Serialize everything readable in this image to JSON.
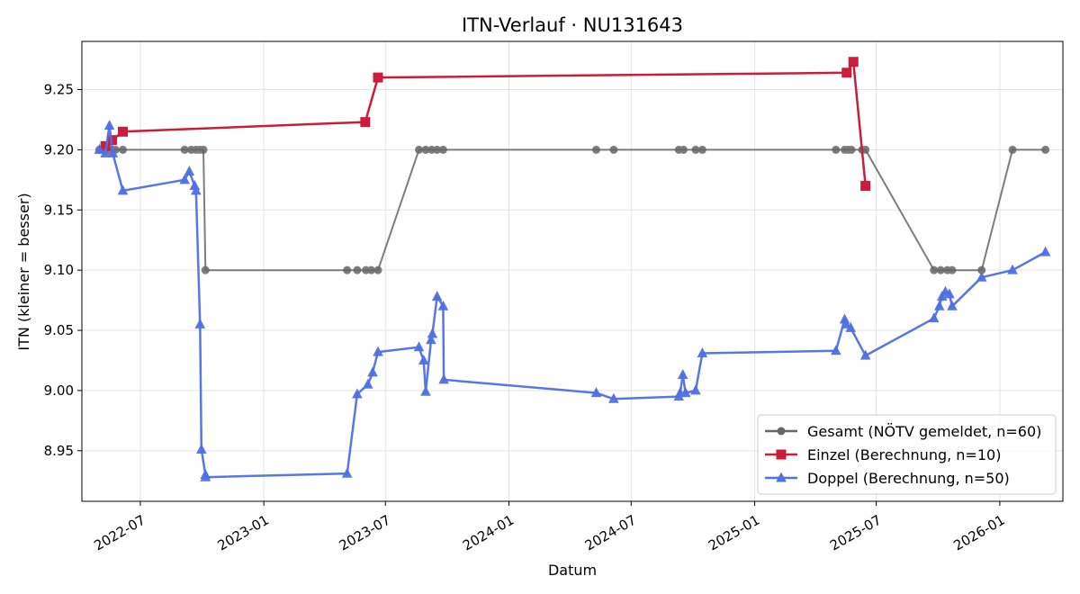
{
  "chart_data": {
    "type": "line",
    "title": "ITN-Verlauf · NU131643",
    "xlabel": "Datum",
    "ylabel": "ITN  (kleiner = besser)",
    "xlim": [
      "2022-04-05",
      "2026-04-05"
    ],
    "ylim": [
      8.908,
      9.29
    ],
    "grid": true,
    "legend_position": "bottom-right",
    "x_ticks": [
      "2022-07-01",
      "2023-01-01",
      "2023-07-01",
      "2024-01-01",
      "2024-07-01",
      "2025-01-01",
      "2025-07-01",
      "2026-01-01"
    ],
    "x_tick_labels": [
      "2022-07",
      "2023-01",
      "2023-07",
      "2024-01",
      "2024-07",
      "2025-01",
      "2025-07",
      "2026-01"
    ],
    "y_ticks": [
      8.95,
      9.0,
      9.05,
      9.1,
      9.15,
      9.2,
      9.25
    ],
    "y_tick_labels": [
      "8.95",
      "9.00",
      "9.05",
      "9.10",
      "9.15",
      "9.20",
      "9.25"
    ],
    "series": [
      {
        "name": "Gesamt (NÖTV gemeldet, n=60)",
        "color": "#666666",
        "marker": "circle",
        "points": [
          [
            "2022-05-01",
            9.2
          ],
          [
            "2022-05-10",
            9.2
          ],
          [
            "2022-05-15",
            9.2
          ],
          [
            "2022-05-20",
            9.2
          ],
          [
            "2022-05-25",
            9.2
          ],
          [
            "2022-06-05",
            9.2
          ],
          [
            "2022-09-05",
            9.2
          ],
          [
            "2022-09-15",
            9.2
          ],
          [
            "2022-09-22",
            9.2
          ],
          [
            "2022-09-28",
            9.2
          ],
          [
            "2022-10-03",
            9.2
          ],
          [
            "2022-10-06",
            9.1
          ],
          [
            "2023-05-05",
            9.1
          ],
          [
            "2023-05-20",
            9.1
          ],
          [
            "2023-06-02",
            9.1
          ],
          [
            "2023-06-10",
            9.1
          ],
          [
            "2023-06-20",
            9.1
          ],
          [
            "2023-08-20",
            9.2
          ],
          [
            "2023-08-30",
            9.2
          ],
          [
            "2023-09-08",
            9.2
          ],
          [
            "2023-09-16",
            9.2
          ],
          [
            "2023-09-25",
            9.2
          ],
          [
            "2024-05-10",
            9.2
          ],
          [
            "2024-06-05",
            9.2
          ],
          [
            "2024-09-10",
            9.2
          ],
          [
            "2024-09-17",
            9.2
          ],
          [
            "2024-10-05",
            9.2
          ],
          [
            "2024-10-15",
            9.2
          ],
          [
            "2025-05-02",
            9.2
          ],
          [
            "2025-05-15",
            9.2
          ],
          [
            "2025-05-20",
            9.2
          ],
          [
            "2025-05-25",
            9.2
          ],
          [
            "2025-06-10",
            9.2
          ],
          [
            "2025-06-15",
            9.2
          ],
          [
            "2025-09-25",
            9.1
          ],
          [
            "2025-10-05",
            9.1
          ],
          [
            "2025-10-15",
            9.1
          ],
          [
            "2025-10-22",
            9.1
          ],
          [
            "2025-12-05",
            9.1
          ],
          [
            "2026-01-20",
            9.2
          ],
          [
            "2026-03-10",
            9.2
          ]
        ]
      },
      {
        "name": "Einzel (Berechnung, n=10)",
        "color": "#c91d3b",
        "marker": "square",
        "points": [
          [
            "2022-05-10",
            9.203
          ],
          [
            "2022-05-20",
            9.208
          ],
          [
            "2022-06-05",
            9.215
          ],
          [
            "2023-06-01",
            9.223
          ],
          [
            "2023-06-20",
            9.26
          ],
          [
            "2025-05-18",
            9.264
          ],
          [
            "2025-05-28",
            9.273
          ],
          [
            "2025-06-15",
            9.17
          ]
        ]
      },
      {
        "name": "Doppel (Berechnung, n=50)",
        "color": "#4f6fe3",
        "marker": "triangle",
        "points": [
          [
            "2022-05-01",
            9.2
          ],
          [
            "2022-05-10",
            9.197
          ],
          [
            "2022-05-16",
            9.22
          ],
          [
            "2022-05-21",
            9.197
          ],
          [
            "2022-06-05",
            9.166
          ],
          [
            "2022-09-05",
            9.175
          ],
          [
            "2022-09-12",
            9.182
          ],
          [
            "2022-09-20",
            9.17
          ],
          [
            "2022-09-22",
            9.166
          ],
          [
            "2022-09-28",
            9.055
          ],
          [
            "2022-09-30",
            8.951
          ],
          [
            "2022-10-06",
            8.93
          ],
          [
            "2022-10-06",
            8.928
          ],
          [
            "2023-05-05",
            8.931
          ],
          [
            "2023-05-20",
            8.997
          ],
          [
            "2023-06-05",
            9.005
          ],
          [
            "2023-06-12",
            9.015
          ],
          [
            "2023-06-20",
            9.032
          ],
          [
            "2023-08-20",
            9.036
          ],
          [
            "2023-08-27",
            9.025
          ],
          [
            "2023-08-30",
            8.999
          ],
          [
            "2023-09-07",
            9.042
          ],
          [
            "2023-09-09",
            9.047
          ],
          [
            "2023-09-16",
            9.078
          ],
          [
            "2023-09-25",
            9.07
          ],
          [
            "2023-09-26",
            9.009
          ],
          [
            "2024-05-10",
            8.998
          ],
          [
            "2024-06-05",
            8.993
          ],
          [
            "2024-09-10",
            8.995
          ],
          [
            "2024-09-12",
            8.998
          ],
          [
            "2024-09-16",
            9.013
          ],
          [
            "2024-09-20",
            8.998
          ],
          [
            "2024-10-05",
            9.0
          ],
          [
            "2024-10-15",
            9.031
          ],
          [
            "2025-05-02",
            9.033
          ],
          [
            "2025-05-15",
            9.059
          ],
          [
            "2025-05-17",
            9.055
          ],
          [
            "2025-05-24",
            9.052
          ],
          [
            "2025-06-15",
            9.029
          ],
          [
            "2025-09-25",
            9.06
          ],
          [
            "2025-10-03",
            9.07
          ],
          [
            "2025-10-07",
            9.078
          ],
          [
            "2025-10-12",
            9.082
          ],
          [
            "2025-10-18",
            9.08
          ],
          [
            "2025-10-22",
            9.07
          ],
          [
            "2025-12-05",
            9.094
          ],
          [
            "2026-01-20",
            9.1
          ],
          [
            "2026-03-10",
            9.115
          ]
        ]
      }
    ]
  }
}
